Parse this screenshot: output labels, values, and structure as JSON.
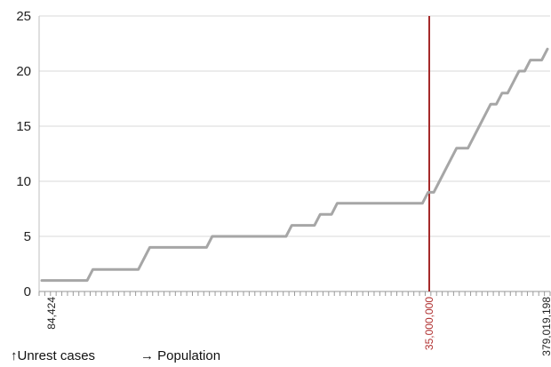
{
  "chart_data": {
    "type": "line",
    "title": "",
    "ylim": [
      0,
      25
    ],
    "yticks": [
      "0",
      "5",
      "10",
      "15",
      "20",
      "25"
    ],
    "xtick_labels": [
      "84,424",
      "35,000,000",
      "379,019,198"
    ],
    "x_marker": {
      "label": "35,000,000",
      "color": "#a52a2a"
    },
    "grid": {
      "horizontal": true,
      "vertical": false
    },
    "series": [
      {
        "color": "#a6a6a6",
        "values": [
          1,
          1,
          1,
          1,
          1,
          1,
          1,
          1,
          1,
          2,
          2,
          2,
          2,
          2,
          2,
          2,
          2,
          2,
          3,
          4,
          4,
          4,
          4,
          4,
          4,
          4,
          4,
          4,
          4,
          4,
          5,
          5,
          5,
          5,
          5,
          5,
          5,
          5,
          5,
          5,
          5,
          5,
          5,
          5,
          6,
          6,
          6,
          6,
          6,
          7,
          7,
          7,
          8,
          8,
          8,
          8,
          8,
          8,
          8,
          8,
          8,
          8,
          8,
          8,
          8,
          8,
          8,
          8,
          9,
          9,
          10,
          11,
          12,
          13,
          13,
          13,
          14,
          15,
          16,
          17,
          17,
          18,
          18,
          19,
          20,
          20,
          21,
          21,
          21,
          22
        ]
      }
    ]
  },
  "legend": {
    "y_label": "↑Unrest cases",
    "x_label": "→ Population"
  }
}
